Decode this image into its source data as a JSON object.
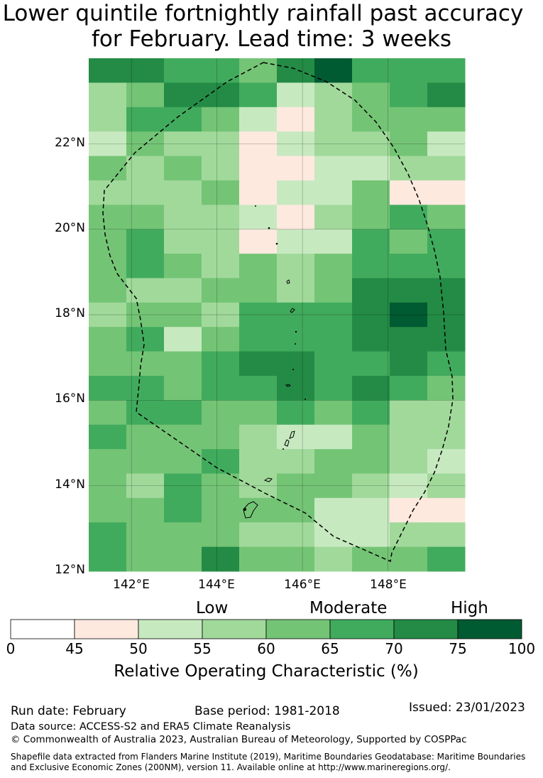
{
  "title": {
    "line1": "Lower quintile fortnightly rainfall past accuracy",
    "line2": "for February. Lead time: 3 weeks"
  },
  "map": {
    "lat_labels": [
      "22°N",
      "20°N",
      "18°N",
      "16°N",
      "14°N",
      "12°N"
    ],
    "lon_labels": [
      "142°E",
      "144°E",
      "146°E",
      "148°E"
    ],
    "lon_range": [
      141.0,
      149.8
    ],
    "lat_range": [
      12.0,
      24.0
    ]
  },
  "chart_data": {
    "type": "heatmap",
    "title": "Lower quintile fortnightly rainfall past accuracy for February. Lead time: 3 weeks",
    "xlabel": "",
    "ylabel": "",
    "grid": true,
    "value_categories": [
      "<45",
      "45-50",
      "50-55",
      "55-60",
      "60-65",
      "65-70",
      "70-75",
      ">75"
    ],
    "note": "grid cells give category index 0-7 (0=white 0-45, 1=45-50, 2=50-55, 3=55-60, 4=60-65, 5=65-70, 6=70-75, 7=75-100); rows from north (top) to south",
    "grid_values": [
      [
        6,
        6,
        5,
        5,
        4,
        6,
        7,
        5,
        5,
        5
      ],
      [
        3,
        4,
        6,
        6,
        5,
        2,
        3,
        4,
        5,
        6
      ],
      [
        3,
        5,
        5,
        4,
        2,
        1,
        3,
        4,
        4,
        4
      ],
      [
        2,
        4,
        3,
        3,
        1,
        2,
        3,
        3,
        4,
        2
      ],
      [
        4,
        3,
        4,
        3,
        1,
        1,
        2,
        2,
        3,
        3
      ],
      [
        3,
        3,
        3,
        4,
        1,
        2,
        2,
        4,
        1,
        1
      ],
      [
        4,
        4,
        3,
        3,
        2,
        1,
        3,
        4,
        5,
        4
      ],
      [
        4,
        5,
        3,
        3,
        1,
        2,
        2,
        5,
        4,
        5
      ],
      [
        4,
        5,
        4,
        3,
        4,
        3,
        4,
        5,
        5,
        5
      ],
      [
        4,
        3,
        3,
        4,
        4,
        3,
        4,
        6,
        6,
        6
      ],
      [
        3,
        4,
        4,
        3,
        5,
        5,
        5,
        6,
        7,
        6
      ],
      [
        4,
        5,
        2,
        4,
        5,
        5,
        5,
        6,
        6,
        6
      ],
      [
        4,
        4,
        4,
        5,
        6,
        6,
        5,
        5,
        6,
        5
      ],
      [
        5,
        5,
        4,
        5,
        5,
        6,
        5,
        6,
        5,
        4
      ],
      [
        4,
        5,
        5,
        4,
        4,
        5,
        4,
        5,
        3,
        3
      ],
      [
        5,
        4,
        4,
        4,
        3,
        2,
        2,
        4,
        3,
        3
      ],
      [
        4,
        4,
        4,
        5,
        3,
        3,
        4,
        4,
        3,
        2
      ],
      [
        4,
        3,
        5,
        4,
        3,
        4,
        4,
        3,
        2,
        3
      ],
      [
        4,
        4,
        5,
        4,
        4,
        4,
        2,
        2,
        1,
        1
      ],
      [
        5,
        4,
        4,
        4,
        3,
        3,
        2,
        2,
        3,
        3
      ],
      [
        5,
        4,
        4,
        6,
        4,
        4,
        3,
        4,
        4,
        5
      ]
    ]
  },
  "colorbar": {
    "colors": [
      "#ffffff",
      "#fee9df",
      "#c7e9c0",
      "#a1d99b",
      "#74c476",
      "#41ab5d",
      "#238b45",
      "#005a32"
    ],
    "ticks": [
      "0",
      "45",
      "50",
      "55",
      "60",
      "65",
      "70",
      "75",
      "100"
    ],
    "words": {
      "low": "Low",
      "moderate": "Moderate",
      "high": "High"
    },
    "label": "Relative Operating Characteristic (%)"
  },
  "footer": {
    "run_date": "Run date: February",
    "base_period": "Base period: 1981-2018",
    "issued": "Issued: 23/01/2023",
    "data_source": "Data source: ACCESS-S2 and ERA5 Climate Reanalysis",
    "copyright": "© Commonwealth of Australia 2023, Australian Bureau of Meteorology, Supported by COSPPac",
    "shapefile_1": "Shapefile data extracted from Flanders Marine Institute (2019), Maritime Boundaries Geodatabase: Maritime Boundaries",
    "shapefile_2": "and Exclusive Economic Zones (200NM), version 11. Available online at http://www.marineregions.org/."
  }
}
